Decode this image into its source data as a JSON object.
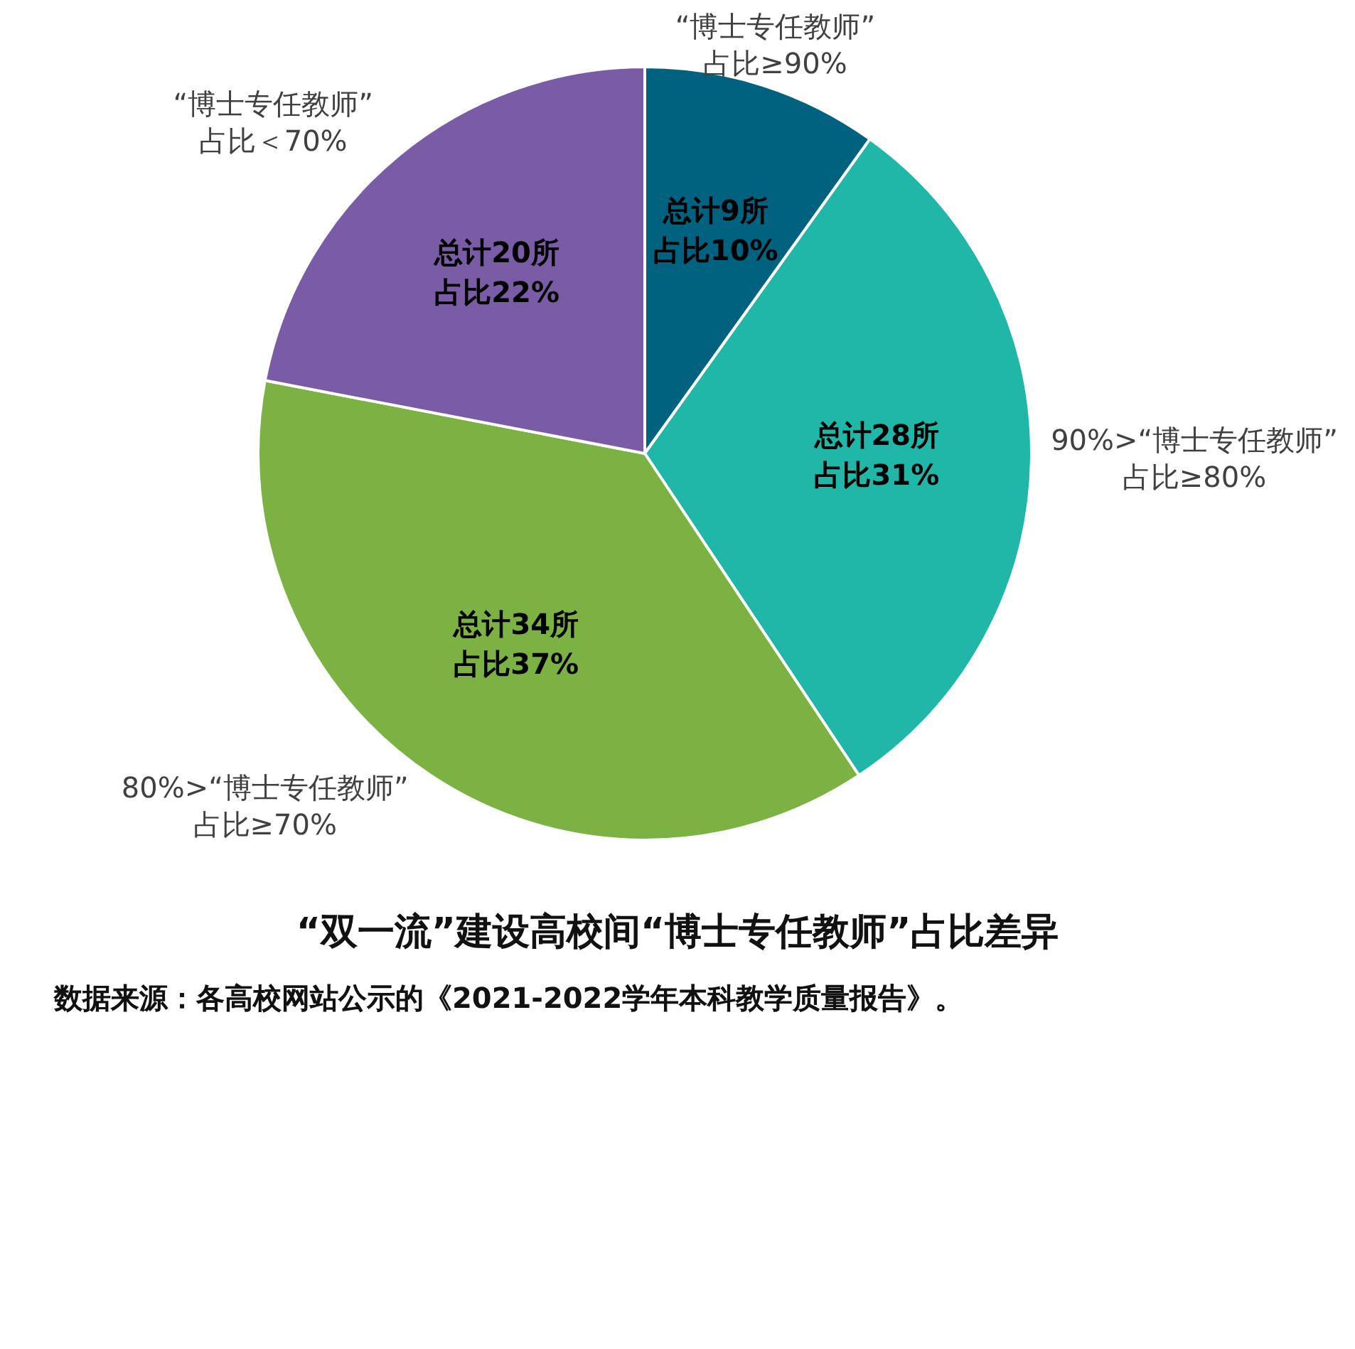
{
  "chart_data": {
    "type": "pie",
    "title": "“双一流”建设高校间“博士专任教师”占比差异",
    "categories": [
      "“博士专任教师”\n占比≥90%",
      "90%>“博士专任教师”\n占比≥80%",
      "80%>“博士专任教师”\n占比≥70%",
      "“博士专任教师”\n占比＜70%"
    ],
    "values": [
      9,
      28,
      34,
      20
    ],
    "value_labels": [
      "总计9所占比10%",
      "总计28所占比31%",
      "总计34所占比37%",
      "总计20所占比22%"
    ],
    "colors": [
      "#00627e",
      "#20b6a8",
      "#7bb243",
      "#7a5ca6"
    ],
    "legend": false,
    "annotations": [
      "数据来源：各高校网站公示的《2021-2022学年本科教学质量报告》。"
    ]
  }
}
